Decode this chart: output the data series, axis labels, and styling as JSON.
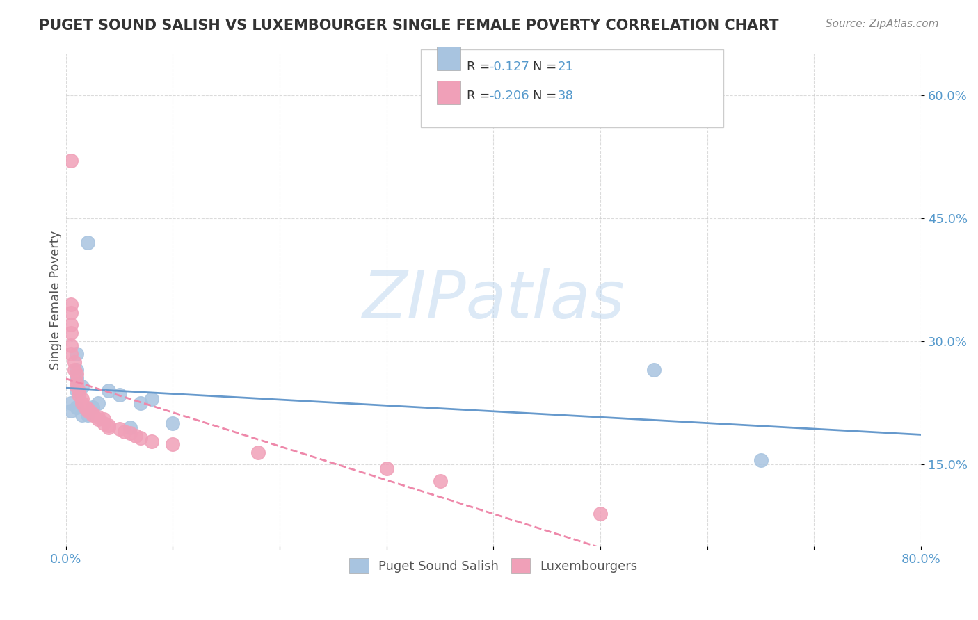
{
  "title": "PUGET SOUND SALISH VS LUXEMBOURGER SINGLE FEMALE POVERTY CORRELATION CHART",
  "source": "Source: ZipAtlas.com",
  "ylabel": "Single Female Poverty",
  "xlim": [
    0.0,
    0.8
  ],
  "ylim": [
    0.05,
    0.65
  ],
  "xtick_positions": [
    0.0,
    0.1,
    0.2,
    0.3,
    0.4,
    0.5,
    0.6,
    0.7,
    0.8
  ],
  "xticklabels": [
    "0.0%",
    "",
    "",
    "",
    "",
    "",
    "",
    "",
    "80.0%"
  ],
  "ytick_positions": [
    0.15,
    0.3,
    0.45,
    0.6
  ],
  "ytick_labels": [
    "15.0%",
    "30.0%",
    "45.0%",
    "60.0%"
  ],
  "r_blue": -0.127,
  "n_blue": 21,
  "r_pink": -0.206,
  "n_pink": 38,
  "blue_color": "#a8c4e0",
  "pink_color": "#f0a0b8",
  "line_blue": "#6699cc",
  "line_pink": "#ee88aa",
  "legend_blue_label": "Puget Sound Salish",
  "legend_pink_label": "Luxembourgers",
  "watermark": "ZIPatlas",
  "blue_points": [
    [
      0.02,
      0.42
    ],
    [
      0.01,
      0.265
    ],
    [
      0.01,
      0.285
    ],
    [
      0.01,
      0.255
    ],
    [
      0.015,
      0.245
    ],
    [
      0.01,
      0.24
    ],
    [
      0.005,
      0.225
    ],
    [
      0.005,
      0.215
    ],
    [
      0.01,
      0.22
    ],
    [
      0.015,
      0.21
    ],
    [
      0.02,
      0.21
    ],
    [
      0.025,
      0.22
    ],
    [
      0.03,
      0.225
    ],
    [
      0.04,
      0.24
    ],
    [
      0.05,
      0.235
    ],
    [
      0.07,
      0.225
    ],
    [
      0.08,
      0.23
    ],
    [
      0.06,
      0.195
    ],
    [
      0.1,
      0.2
    ],
    [
      0.55,
      0.265
    ],
    [
      0.65,
      0.155
    ]
  ],
  "pink_points": [
    [
      0.005,
      0.52
    ],
    [
      0.005,
      0.345
    ],
    [
      0.005,
      0.335
    ],
    [
      0.005,
      0.32
    ],
    [
      0.005,
      0.31
    ],
    [
      0.005,
      0.295
    ],
    [
      0.005,
      0.285
    ],
    [
      0.008,
      0.275
    ],
    [
      0.008,
      0.265
    ],
    [
      0.01,
      0.26
    ],
    [
      0.01,
      0.25
    ],
    [
      0.01,
      0.245
    ],
    [
      0.012,
      0.24
    ],
    [
      0.012,
      0.235
    ],
    [
      0.015,
      0.23
    ],
    [
      0.015,
      0.225
    ],
    [
      0.018,
      0.22
    ],
    [
      0.02,
      0.218
    ],
    [
      0.02,
      0.215
    ],
    [
      0.025,
      0.212
    ],
    [
      0.025,
      0.21
    ],
    [
      0.03,
      0.208
    ],
    [
      0.03,
      0.205
    ],
    [
      0.035,
      0.205
    ],
    [
      0.035,
      0.2
    ],
    [
      0.04,
      0.198
    ],
    [
      0.04,
      0.195
    ],
    [
      0.05,
      0.193
    ],
    [
      0.055,
      0.19
    ],
    [
      0.06,
      0.188
    ],
    [
      0.065,
      0.185
    ],
    [
      0.07,
      0.182
    ],
    [
      0.08,
      0.178
    ],
    [
      0.1,
      0.175
    ],
    [
      0.18,
      0.165
    ],
    [
      0.3,
      0.145
    ],
    [
      0.35,
      0.13
    ],
    [
      0.5,
      0.09
    ]
  ]
}
